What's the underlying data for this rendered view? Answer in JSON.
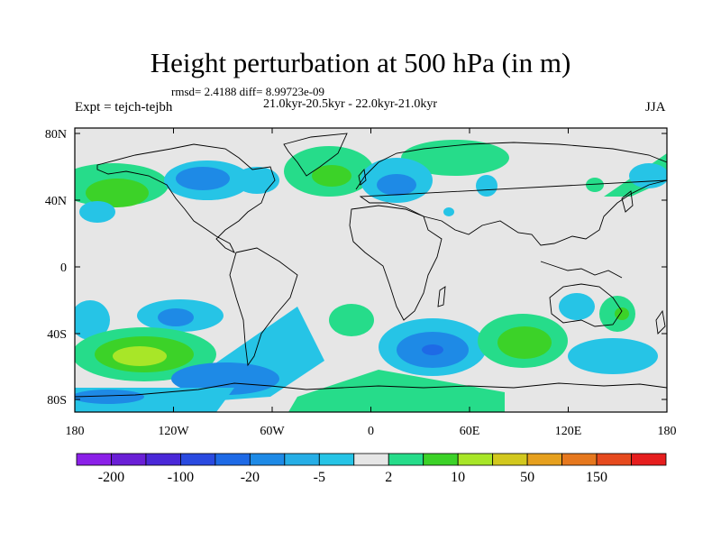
{
  "title": "Height perturbation at 500 hPa (in m)",
  "stats": "rmsd= 2.4188 diff= 8.99723e-09",
  "expt": "Expt = tejch-tejbh",
  "period": "21.0kyr-20.5kyr - 22.0kyr-21.0kyr",
  "season": "JJA",
  "lat_labels": [
    "80N",
    "40N",
    "0",
    "40S",
    "80S"
  ],
  "lon_labels": [
    "180",
    "120W",
    "60W",
    "0",
    "60E",
    "120E",
    "180"
  ],
  "colorbar": {
    "labels": [
      "-200",
      "-100",
      "-20",
      "-5",
      "2",
      "10",
      "50",
      "150"
    ],
    "colors": [
      "#8b20e8",
      "#6a1fd6",
      "#4a28d8",
      "#2a4ae0",
      "#1e6ae6",
      "#1e8ae6",
      "#26aee6",
      "#26c4e6",
      "#e6e6e6",
      "#26dc8a",
      "#3cd228",
      "#a8e628",
      "#d2c81e",
      "#e6a01e",
      "#e6781e",
      "#e64a1e",
      "#e61e1e"
    ]
  },
  "colors": {
    "background_fill": "#e6e6e6",
    "border": "#000000"
  }
}
